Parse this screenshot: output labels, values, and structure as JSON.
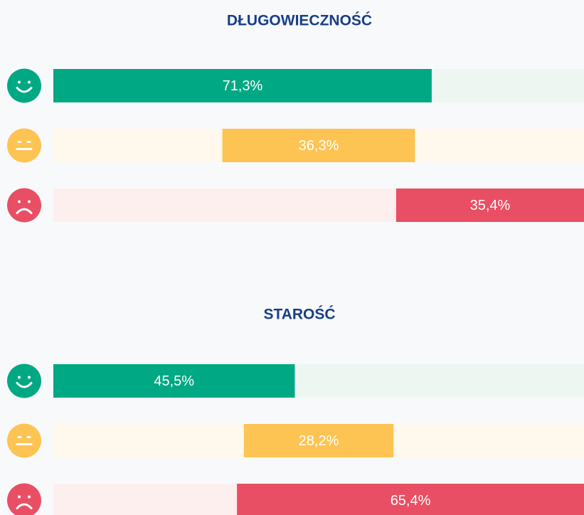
{
  "chart_data": [
    {
      "type": "bar",
      "title": "DŁUGOWIECZNOŚĆ",
      "categories": [
        null,
        null,
        null
      ],
      "values": [
        71.3,
        36.3,
        35.4
      ],
      "value_labels": [
        "71,3%",
        "36,3%",
        "35,4%"
      ],
      "colors": [
        "#00a884",
        "#fdc453",
        "#e94f64"
      ],
      "track_colors": [
        "#eef6f2",
        "#fff8ec",
        "#fdefee"
      ],
      "xlim": [
        0,
        100
      ]
    },
    {
      "type": "bar",
      "title": "STAROŚĆ",
      "categories": [
        null,
        null,
        null
      ],
      "values": [
        45.5,
        28.2,
        65.4
      ],
      "value_labels": [
        "45,5%",
        "28,2%",
        "65,4%"
      ],
      "colors": [
        "#00a884",
        "#fdc453",
        "#e94f64"
      ],
      "track_colors": [
        "#eef6f2",
        "#fff8ec",
        "#fdefee"
      ],
      "xlim": [
        0,
        100
      ]
    }
  ]
}
